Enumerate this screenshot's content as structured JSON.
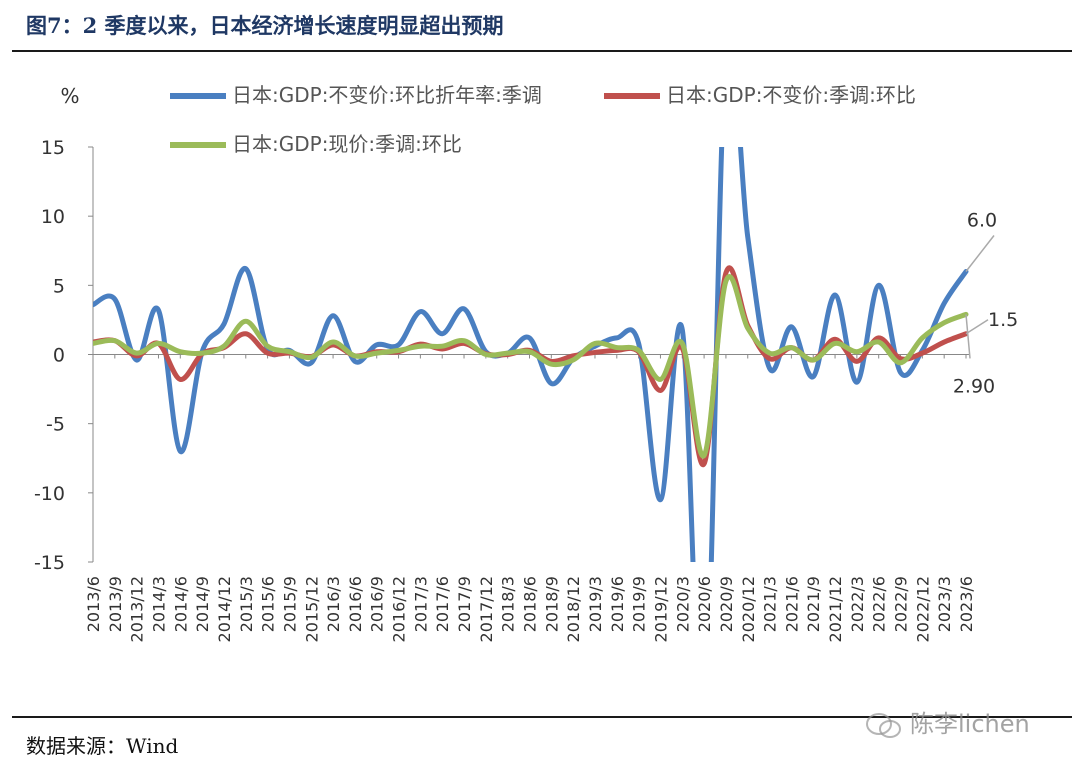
{
  "figure": {
    "title": "图7：2 季度以来，日本经济增长速度明显超出预期",
    "source": "数据来源：Wind",
    "watermark": "陈李lichen"
  },
  "colors": {
    "blue": "#4a7fc1",
    "red": "#c0504d",
    "green": "#9bbb59",
    "title": "#1f3864"
  },
  "chart_data": {
    "type": "line",
    "ylabel": "%",
    "ylim": [
      -15,
      15
    ],
    "yticks": [
      15,
      10,
      5,
      0,
      -5,
      -10,
      -15
    ],
    "legend_placement": "top",
    "grid": false,
    "categories": [
      "2013/6",
      "2013/9",
      "2013/12",
      "2014/3",
      "2014/6",
      "2014/9",
      "2014/12",
      "2015/3",
      "2015/6",
      "2015/9",
      "2015/12",
      "2016/3",
      "2016/6",
      "2016/9",
      "2016/12",
      "2017/3",
      "2017/6",
      "2017/9",
      "2017/12",
      "2018/3",
      "2018/6",
      "2018/9",
      "2018/12",
      "2019/3",
      "2019/6",
      "2019/9",
      "2019/12",
      "2020/3",
      "2020/6",
      "2020/9",
      "2020/12",
      "2021/3",
      "2021/6",
      "2021/9",
      "2021/12",
      "2022/3",
      "2022/6",
      "2022/9",
      "2022/12",
      "2023/3",
      "2023/6"
    ],
    "series": [
      {
        "name": "日本:GDP:不变价:环比折年率:季调",
        "color": "#4a7fc1",
        "values": [
          3.6,
          4.0,
          -0.4,
          3.2,
          -7.0,
          0.2,
          2.2,
          6.2,
          0.4,
          0.3,
          -0.6,
          2.8,
          -0.5,
          0.7,
          0.7,
          3.1,
          1.5,
          3.3,
          0.2,
          0.1,
          1.2,
          -2.1,
          -0.3,
          0.6,
          1.2,
          0.8,
          -10.5,
          1.8,
          -28.0,
          22.0,
          8.5,
          -1.0,
          2.0,
          -1.6,
          4.3,
          -2.0,
          5.0,
          -1.3,
          0.3,
          3.7,
          6.0
        ]
      },
      {
        "name": "日本:GDP:不变价:季调:环比",
        "color": "#c0504d",
        "values": [
          0.9,
          1.0,
          -0.1,
          0.8,
          -1.8,
          0.05,
          0.5,
          1.5,
          0.1,
          0.1,
          -0.15,
          0.7,
          -0.1,
          0.2,
          0.2,
          0.75,
          0.4,
          0.8,
          0.05,
          0.0,
          0.3,
          -0.5,
          -0.1,
          0.15,
          0.3,
          0.2,
          -2.6,
          0.45,
          -7.9,
          5.9,
          2.1,
          -0.3,
          0.5,
          -0.4,
          1.1,
          -0.5,
          1.2,
          -0.3,
          0.1,
          0.9,
          1.5
        ]
      },
      {
        "name": "日本:GDP:现价:季调:环比",
        "color": "#9bbb59",
        "values": [
          0.8,
          1.0,
          0.1,
          0.8,
          0.2,
          0.1,
          0.6,
          2.4,
          0.6,
          0.2,
          -0.2,
          0.9,
          -0.1,
          0.1,
          0.3,
          0.6,
          0.6,
          1.0,
          0.0,
          0.1,
          0.2,
          -0.7,
          -0.4,
          0.8,
          0.5,
          0.3,
          -1.8,
          0.8,
          -7.3,
          5.3,
          1.9,
          0.1,
          0.5,
          -0.4,
          0.8,
          0.2,
          0.9,
          -0.6,
          1.2,
          2.3,
          2.9
        ]
      }
    ],
    "annotations": [
      {
        "text": "6.0",
        "series": 0
      },
      {
        "text": "2.90",
        "series": 2
      },
      {
        "text": "1.5",
        "series": 1
      }
    ]
  }
}
